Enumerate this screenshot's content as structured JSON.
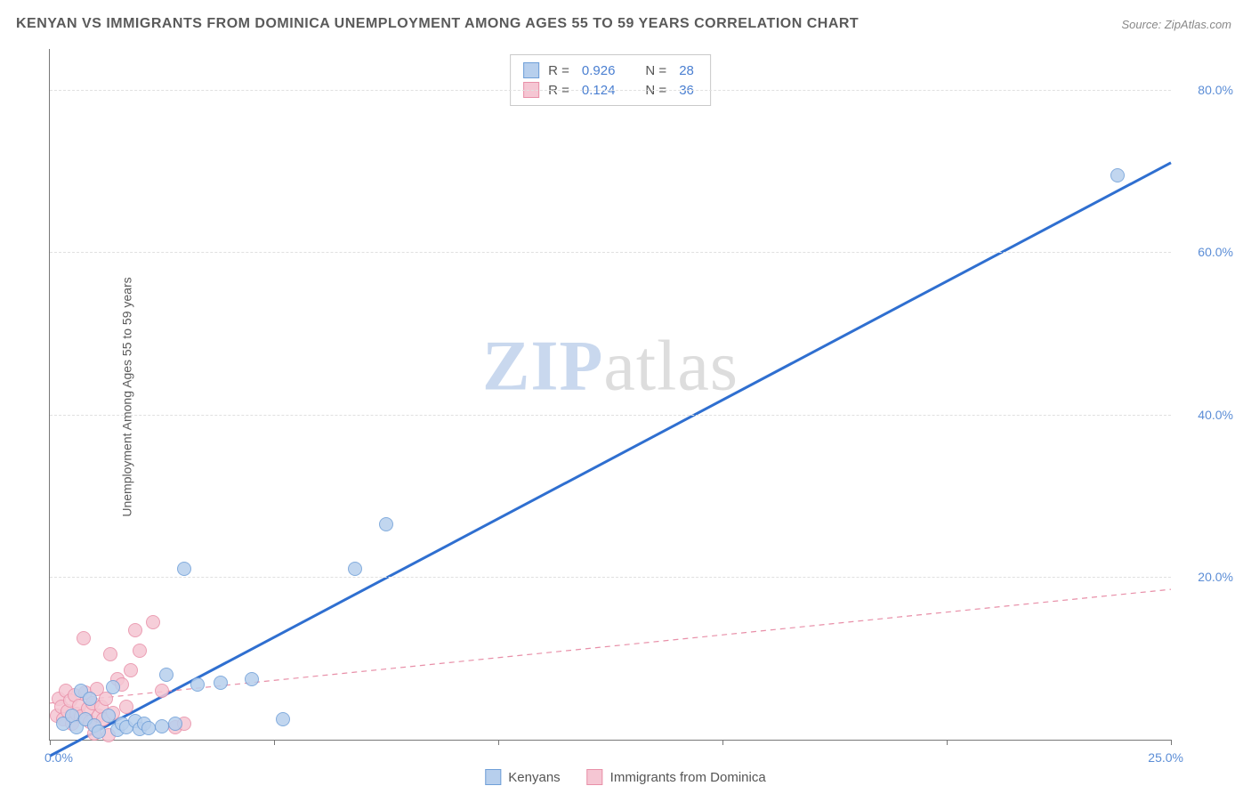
{
  "title": "KENYAN VS IMMIGRANTS FROM DOMINICA UNEMPLOYMENT AMONG AGES 55 TO 59 YEARS CORRELATION CHART",
  "source": "Source: ZipAtlas.com",
  "ylabel": "Unemployment Among Ages 55 to 59 years",
  "watermark_a": "ZIP",
  "watermark_b": "atlas",
  "chart": {
    "type": "scatter",
    "xlim": [
      0,
      25
    ],
    "ylim": [
      0,
      85
    ],
    "x_ticks": [
      0,
      5,
      10,
      15,
      20,
      25
    ],
    "x_tick_labels": {
      "0": "0.0%",
      "25": "25.0%"
    },
    "y_ticks": [
      20,
      40,
      60,
      80
    ],
    "y_tick_labels": {
      "20": "20.0%",
      "40": "40.0%",
      "60": "60.0%",
      "80": "80.0%"
    },
    "background_color": "#ffffff",
    "grid_color": "#e0e0e0",
    "axis_color": "#777777",
    "tick_label_color": "#5b8dd6",
    "marker_radius": 8,
    "marker_border": 1,
    "series": [
      {
        "name": "Kenyans",
        "fill": "#b7cfed",
        "stroke": "#6f9fd8",
        "line_color": "#2f6fd0",
        "line_width": 3,
        "line_dash": "none",
        "R_label": "R =",
        "R": "0.926",
        "N_label": "N =",
        "N": "28",
        "regression": {
          "x1": 0,
          "y1": -2,
          "x2": 25,
          "y2": 71
        },
        "points": [
          {
            "x": 0.3,
            "y": 2.0
          },
          {
            "x": 0.5,
            "y": 3.0
          },
          {
            "x": 0.6,
            "y": 1.5
          },
          {
            "x": 0.7,
            "y": 6.0
          },
          {
            "x": 0.8,
            "y": 2.5
          },
          {
            "x": 0.9,
            "y": 5.0
          },
          {
            "x": 1.0,
            "y": 1.8
          },
          {
            "x": 1.1,
            "y": 1.0
          },
          {
            "x": 1.3,
            "y": 3.0
          },
          {
            "x": 1.4,
            "y": 6.5
          },
          {
            "x": 1.5,
            "y": 1.2
          },
          {
            "x": 1.6,
            "y": 2.0
          },
          {
            "x": 1.7,
            "y": 1.5
          },
          {
            "x": 1.9,
            "y": 2.3
          },
          {
            "x": 2.0,
            "y": 1.3
          },
          {
            "x": 2.1,
            "y": 2.0
          },
          {
            "x": 2.2,
            "y": 1.4
          },
          {
            "x": 2.5,
            "y": 1.6
          },
          {
            "x": 2.6,
            "y": 8.0
          },
          {
            "x": 2.8,
            "y": 2.0
          },
          {
            "x": 3.0,
            "y": 21.0
          },
          {
            "x": 3.3,
            "y": 6.8
          },
          {
            "x": 3.8,
            "y": 7.0
          },
          {
            "x": 4.5,
            "y": 7.5
          },
          {
            "x": 5.2,
            "y": 2.5
          },
          {
            "x": 6.8,
            "y": 21.0
          },
          {
            "x": 7.5,
            "y": 26.5
          },
          {
            "x": 23.8,
            "y": 69.5
          }
        ]
      },
      {
        "name": "Immigrants from Dominica",
        "fill": "#f5c6d3",
        "stroke": "#e88fa8",
        "line_color": "#e88fa8",
        "line_width": 1.2,
        "line_dash": "6,5",
        "R_label": "R =",
        "R": "0.124",
        "N_label": "N =",
        "N": "36",
        "regression": {
          "x1": 0,
          "y1": 4.5,
          "x2": 25,
          "y2": 18.5
        },
        "points": [
          {
            "x": 0.15,
            "y": 3.0
          },
          {
            "x": 0.2,
            "y": 5.0
          },
          {
            "x": 0.25,
            "y": 4.0
          },
          {
            "x": 0.3,
            "y": 2.5
          },
          {
            "x": 0.35,
            "y": 6.0
          },
          {
            "x": 0.4,
            "y": 3.5
          },
          {
            "x": 0.45,
            "y": 4.8
          },
          {
            "x": 0.5,
            "y": 2.0
          },
          {
            "x": 0.55,
            "y": 5.5
          },
          {
            "x": 0.6,
            "y": 3.2
          },
          {
            "x": 0.65,
            "y": 4.2
          },
          {
            "x": 0.7,
            "y": 2.8
          },
          {
            "x": 0.75,
            "y": 12.5
          },
          {
            "x": 0.8,
            "y": 5.8
          },
          {
            "x": 0.85,
            "y": 3.8
          },
          {
            "x": 0.9,
            "y": 2.2
          },
          {
            "x": 0.95,
            "y": 4.5
          },
          {
            "x": 1.0,
            "y": 0.8
          },
          {
            "x": 1.05,
            "y": 6.2
          },
          {
            "x": 1.1,
            "y": 3.0
          },
          {
            "x": 1.15,
            "y": 4.0
          },
          {
            "x": 1.2,
            "y": 2.5
          },
          {
            "x": 1.25,
            "y": 5.0
          },
          {
            "x": 1.3,
            "y": 0.5
          },
          {
            "x": 1.35,
            "y": 10.5
          },
          {
            "x": 1.4,
            "y": 3.3
          },
          {
            "x": 1.5,
            "y": 7.5
          },
          {
            "x": 1.6,
            "y": 6.8
          },
          {
            "x": 1.7,
            "y": 4.0
          },
          {
            "x": 1.8,
            "y": 8.5
          },
          {
            "x": 1.9,
            "y": 13.5
          },
          {
            "x": 2.0,
            "y": 11.0
          },
          {
            "x": 2.3,
            "y": 14.5
          },
          {
            "x": 2.5,
            "y": 6.0
          },
          {
            "x": 2.8,
            "y": 1.5
          },
          {
            "x": 3.0,
            "y": 2.0
          }
        ]
      }
    ]
  }
}
